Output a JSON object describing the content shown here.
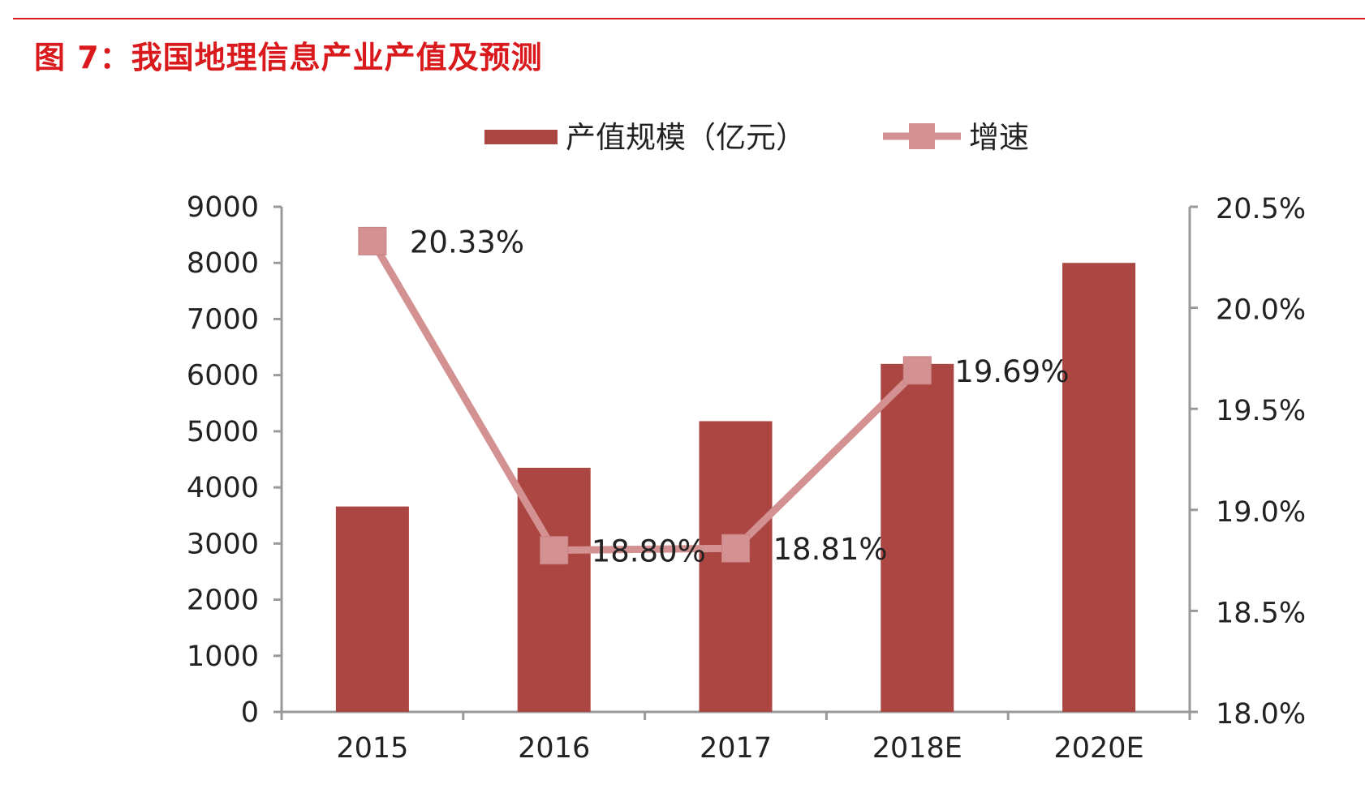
{
  "title": "图 7：我国地理信息产业产值及预测",
  "chart_data": {
    "type": "bar+line",
    "title": "图 7：我国地理信息产业产值及预测",
    "categories": [
      "2015",
      "2016",
      "2017",
      "2018E",
      "2020E"
    ],
    "series": [
      {
        "name": "产值规模（亿元）",
        "type": "bar",
        "axis": "left",
        "color": "#ab4642",
        "values": [
          3660,
          4350,
          5180,
          6200,
          8000
        ]
      },
      {
        "name": "增速",
        "type": "line",
        "axis": "right",
        "color": "#d39191",
        "marker": "square",
        "values": [
          20.33,
          18.8,
          18.81,
          19.69,
          null
        ],
        "labels": [
          "20.33%",
          "18.80%",
          "18.81%",
          "19.69%",
          ""
        ]
      }
    ],
    "y_left": {
      "range": [
        0,
        9000
      ],
      "ticks": [
        "0",
        "1000",
        "2000",
        "3000",
        "4000",
        "5000",
        "6000",
        "7000",
        "8000",
        "9000"
      ]
    },
    "y_right": {
      "range": [
        18.0,
        20.5
      ],
      "ticks": [
        "18.0%",
        "18.5%",
        "19.0%",
        "19.5%",
        "20.0%",
        "20.5%"
      ]
    },
    "legend": "top",
    "grid": false
  }
}
